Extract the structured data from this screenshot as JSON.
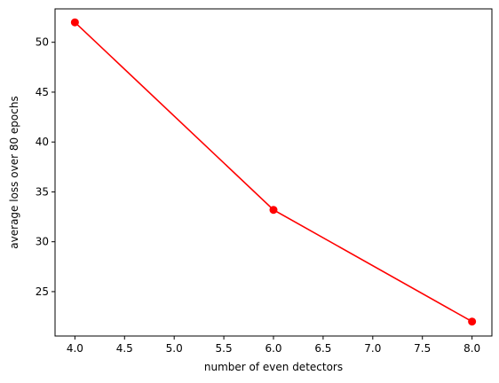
{
  "chart_data": {
    "type": "line",
    "title": "",
    "xlabel": "number of even detectors",
    "ylabel": "average loss over 80 epochs",
    "xlim": [
      3.8,
      8.2
    ],
    "ylim": [
      20.55,
      53.35
    ],
    "xticks": [
      4.0,
      4.5,
      5.0,
      5.5,
      6.0,
      6.5,
      7.0,
      7.5,
      8.0
    ],
    "xtick_labels": [
      "4.0",
      "4.5",
      "5.0",
      "5.5",
      "6.0",
      "6.5",
      "7.0",
      "7.5",
      "8.0"
    ],
    "yticks": [
      25,
      30,
      35,
      40,
      45,
      50
    ],
    "ytick_labels": [
      "25",
      "30",
      "35",
      "40",
      "45",
      "50"
    ],
    "grid": false,
    "legend": "none",
    "series": [
      {
        "color": "#ff0000",
        "marker": "circle",
        "x": [
          4,
          6,
          8
        ],
        "y": [
          52.0,
          33.2,
          22.0
        ]
      }
    ]
  }
}
